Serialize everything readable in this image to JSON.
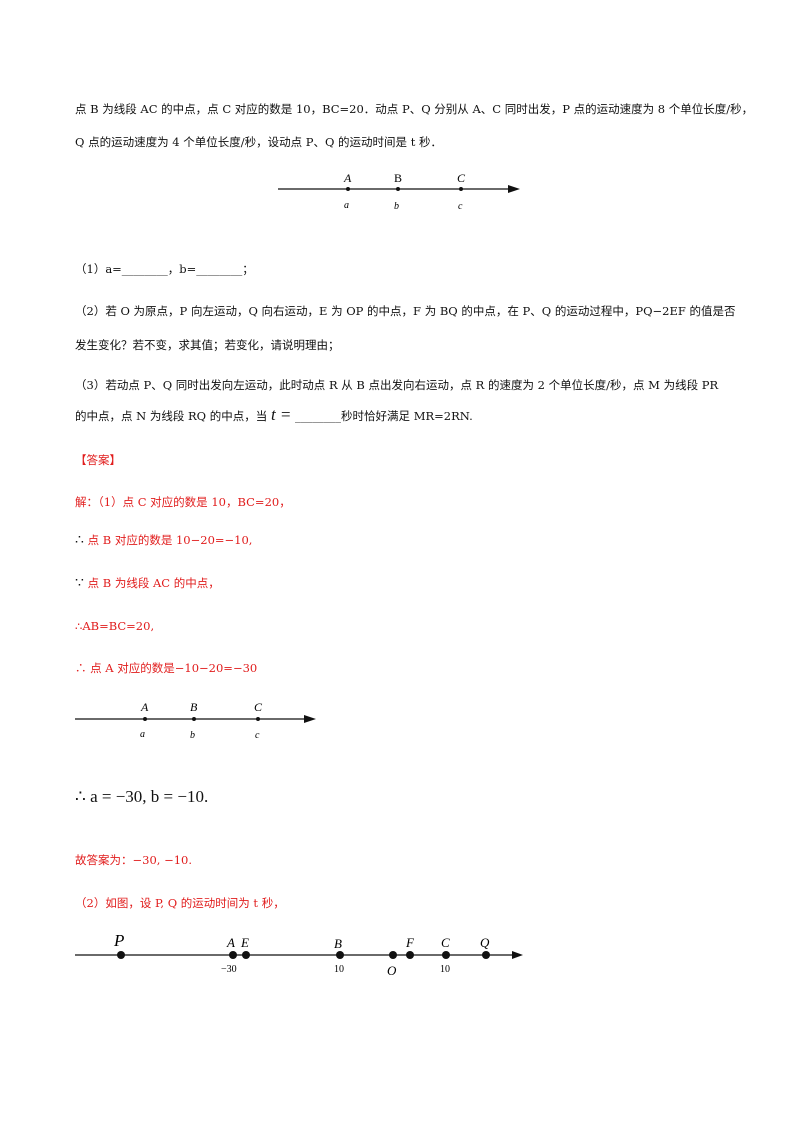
{
  "problem": {
    "intro_line1": "点 B 为线段 AC 的中点，点 C 对应的数是 10，BC=20．动点 P、Q 分别从 A、C 同时出发，P 点的运动速度为 8 个单位长度/秒，",
    "intro_line2": "Q 点的运动速度为 4 个单位长度/秒，设动点 P、Q 的运动时间是 t 秒．",
    "q1": "（1）a=________，b=________；",
    "q2_line1": "（2）若 O 为原点，P 向左运动，Q 向右运动，E 为 OP 的中点，F 为 BQ 的中点，在 P、Q 的运动过程中，PQ−2EF 的值是否",
    "q2_line2": "发生变化？若不变，求其值；若变化，请说明理由；",
    "q3_line1": "（3）若动点 P、Q 同时出发向左运动，此时动点 R 从 B 点出发向右运动，点 R 的速度为 2 个单位长度/秒，点 M 为线段 PR",
    "q3_line2_a": "的中点，点 N 为线段 RQ 的中点，当",
    "q3_line2_t": "t =",
    "q3_line2_b": "________秒时恰好满足 MR=2RN."
  },
  "answer": {
    "header": "【答案】",
    "s1": "解：（1）点 C 对应的数是 10，BC=20，",
    "s2_sym": "∴",
    "s2": "点 B 对应的数是 10−20=−10,",
    "s3_sym": "∵",
    "s3": "点 B 为线段 AC 的中点，",
    "s4": "∴AB=BC=20,",
    "s5": "∴ 点 A 对应的数是−10−20=−30",
    "s6": "∴ a = −30, b = −10.",
    "s7": "故答案为：−30, −10.",
    "s8": "（2）如图，设 P, Q 的运动时间为 t 秒，"
  },
  "diagram1": {
    "points": [
      "A",
      "B",
      "C"
    ],
    "values": [
      "a",
      "b",
      "c"
    ]
  },
  "diagram2": {
    "points": [
      "A",
      "B",
      "C"
    ],
    "values": [
      "a",
      "b",
      "c"
    ]
  },
  "diagram3": {
    "points": [
      "P",
      "A",
      "E",
      "B",
      "F",
      "C",
      "Q"
    ],
    "below": [
      "O"
    ],
    "ticks": [
      "−30",
      "10",
      "10"
    ]
  }
}
